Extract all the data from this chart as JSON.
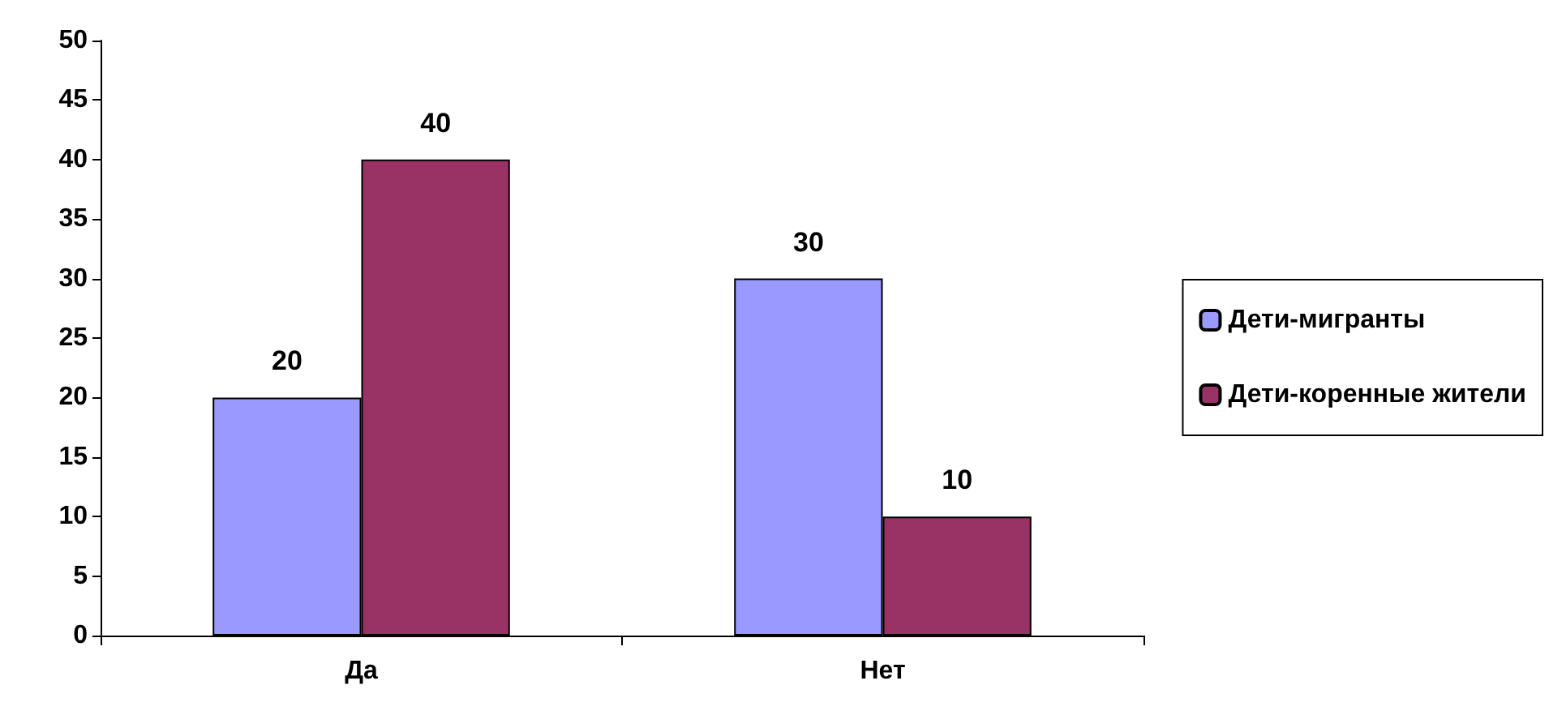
{
  "chart_data": {
    "type": "bar",
    "categories": [
      "Да",
      "Нет"
    ],
    "series": [
      {
        "name": "Дети-мигранты",
        "color": "#9999ff",
        "values": [
          20,
          30
        ]
      },
      {
        "name": "Дети-коренные жители",
        "color": "#993366",
        "values": [
          40,
          10
        ]
      }
    ],
    "ylim": [
      0,
      50
    ],
    "yticks": [
      0,
      5,
      10,
      15,
      20,
      25,
      30,
      35,
      40,
      45,
      50
    ],
    "grid": false,
    "legend": "right",
    "data_labels": true
  }
}
